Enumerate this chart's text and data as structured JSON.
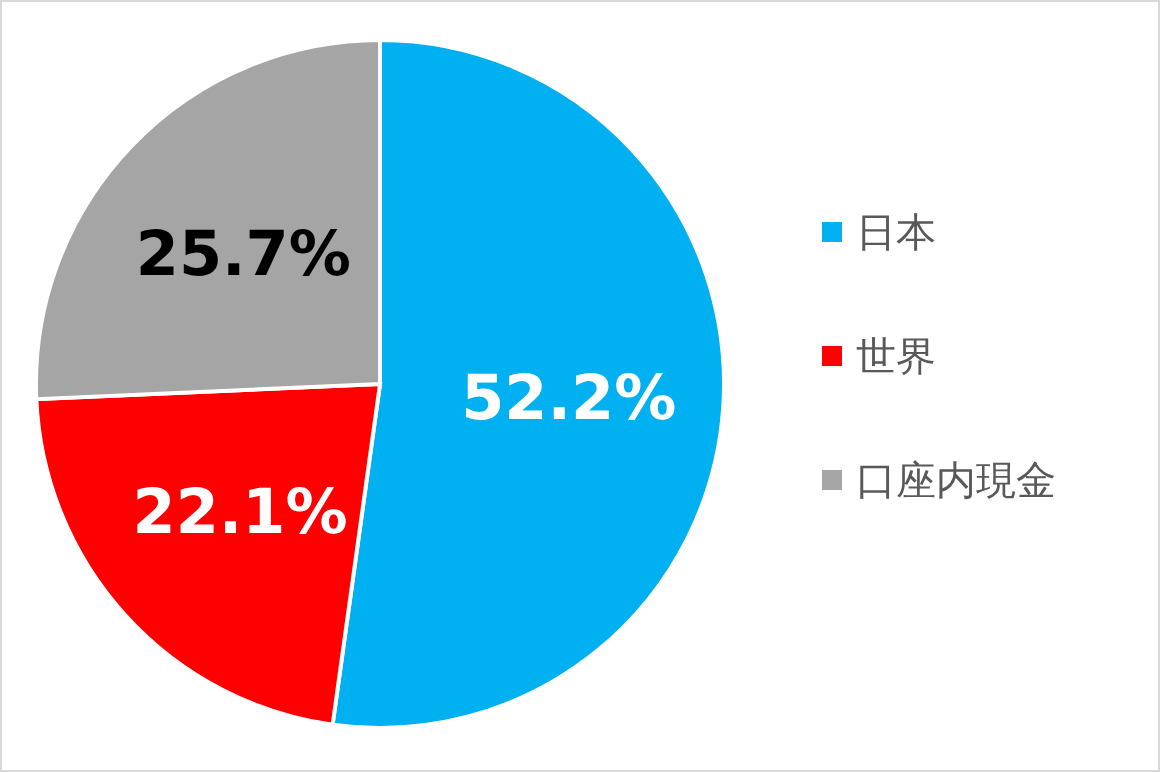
{
  "chart_data": {
    "type": "pie",
    "categories": [
      "日本",
      "世界",
      "口座内現金"
    ],
    "values": [
      52.2,
      22.1,
      25.7
    ],
    "colors": [
      "#00b0f0",
      "#ff0000",
      "#a5a5a5"
    ],
    "value_labels": [
      "52.2%",
      "22.1%",
      "25.7%"
    ],
    "legend": "right"
  }
}
